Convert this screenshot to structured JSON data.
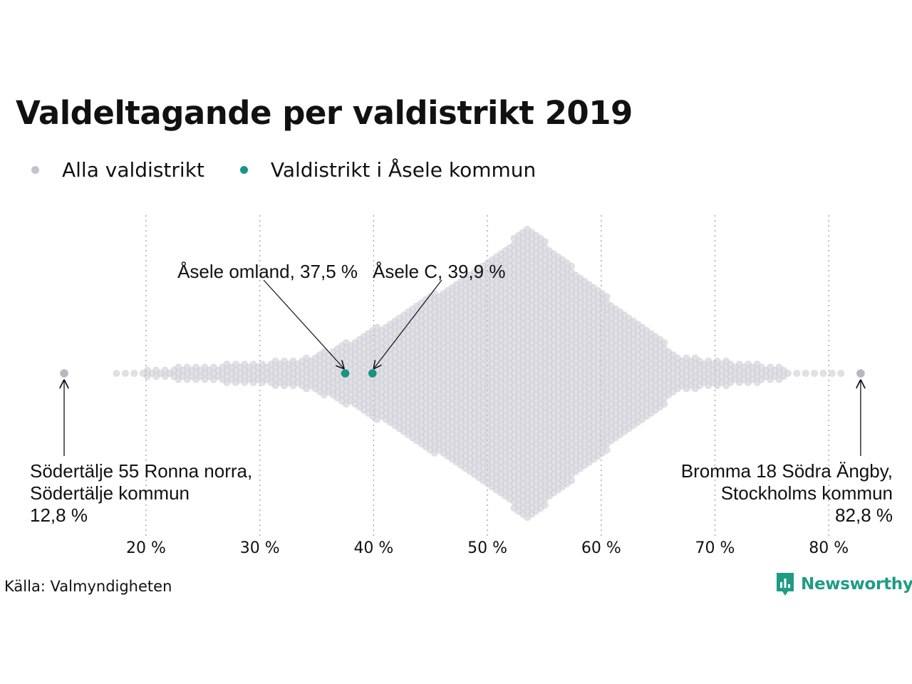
{
  "title": "Valdeltagande per valdistrikt 2019",
  "legend": {
    "items": [
      {
        "label": "Alla valdistrikt",
        "color": "#c2c2cc"
      },
      {
        "label": "Valdistrikt i Åsele kommun",
        "color": "#1a9483"
      }
    ]
  },
  "source": "Källa: Valmyndigheten",
  "brand": {
    "name": "Newsworthy",
    "color": "#1f9b84"
  },
  "chart_data": {
    "type": "scatter",
    "subtype": "beeswarm",
    "xlim": [
      12,
      83
    ],
    "x_ticks": [
      20,
      30,
      40,
      50,
      60,
      70,
      80
    ],
    "x_tick_labels": [
      "20 %",
      "30 %",
      "40 %",
      "50 %",
      "60 %",
      "70 %",
      "80 %"
    ],
    "grid": "vertical dotted",
    "legend_placement": "top-left",
    "background_color": "#c2c2cc",
    "highlight_color": "#1a9483",
    "highlighted": [
      {
        "label": "Åsele omland, 37,5 %",
        "value": 37.5
      },
      {
        "label": "Åsele C, 39,9 %",
        "value": 39.9
      }
    ],
    "extremes": [
      {
        "lines": [
          "Södertälje 55 Ronna norra,",
          "Södertälje kommun",
          "12,8 %"
        ],
        "value": 12.8
      },
      {
        "lines": [
          "Bromma 18 Södra Ängby,",
          "Stockholms kommun",
          "82,8 %"
        ],
        "value": 82.8
      }
    ],
    "distribution_mode": 53.8
  }
}
